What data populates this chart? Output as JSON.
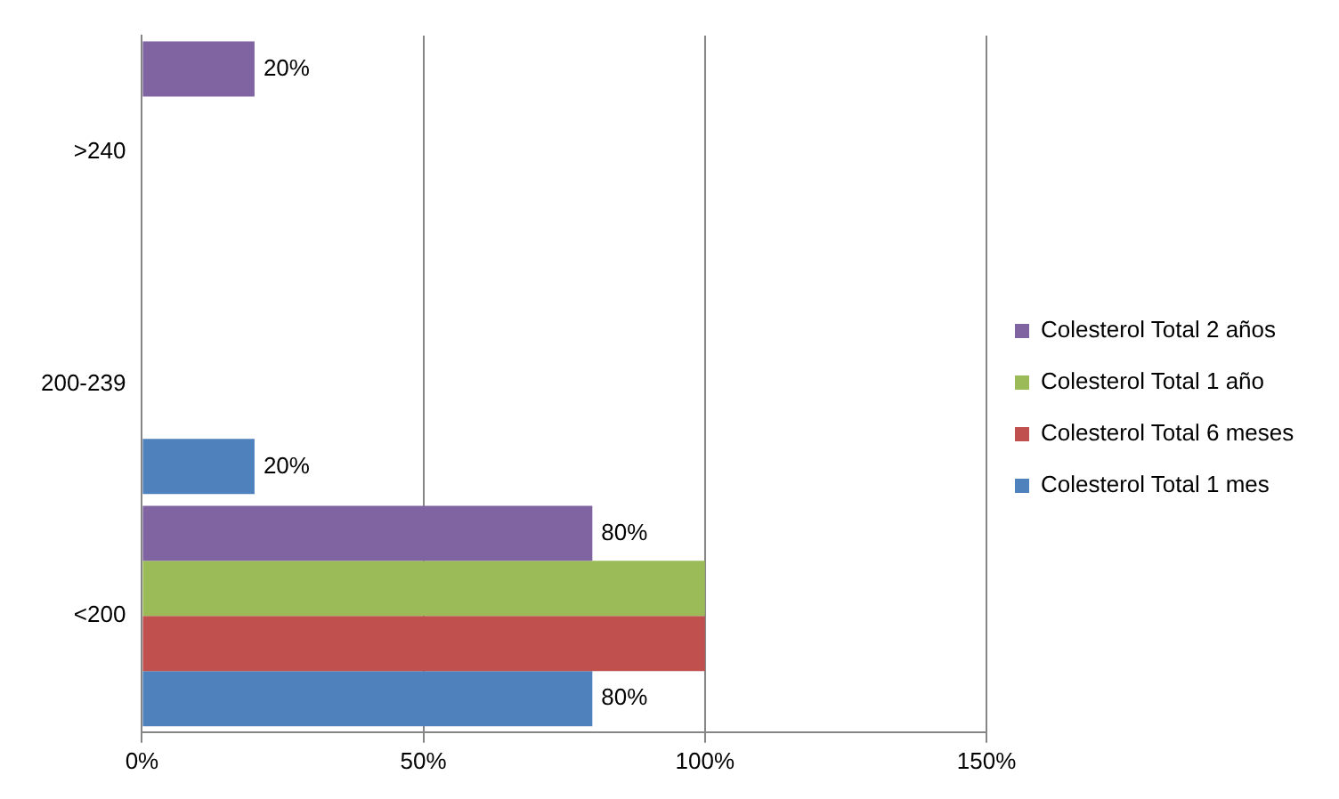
{
  "chart_data": {
    "type": "bar",
    "orientation": "horizontal",
    "categories": [
      ">240",
      "200-239",
      "<200"
    ],
    "series": [
      {
        "name": "Colesterol Total 1 mes",
        "color": "#4f81bd",
        "values": [
          0,
          20,
          80
        ],
        "value_labels": [
          null,
          "20%",
          "80%"
        ]
      },
      {
        "name": "Colesterol Total 6 meses",
        "color": "#c0504d",
        "values": [
          0,
          0,
          100
        ],
        "value_labels": [
          null,
          null,
          null
        ]
      },
      {
        "name": "Colesterol Total 1 año",
        "color": "#9bbb59",
        "values": [
          0,
          0,
          100
        ],
        "value_labels": [
          null,
          null,
          null
        ]
      },
      {
        "name": "Colesterol Total 2 años",
        "color": "#8064a2",
        "values": [
          20,
          0,
          80
        ],
        "value_labels": [
          "20%",
          null,
          "80%"
        ]
      }
    ],
    "xlim": [
      0,
      150
    ],
    "xticks": [
      {
        "value": 0,
        "label": "0%"
      },
      {
        "value": 50,
        "label": "50%"
      },
      {
        "value": 100,
        "label": "100%"
      },
      {
        "value": 150,
        "label": "150%"
      }
    ],
    "grid": "x",
    "legend": "right"
  }
}
